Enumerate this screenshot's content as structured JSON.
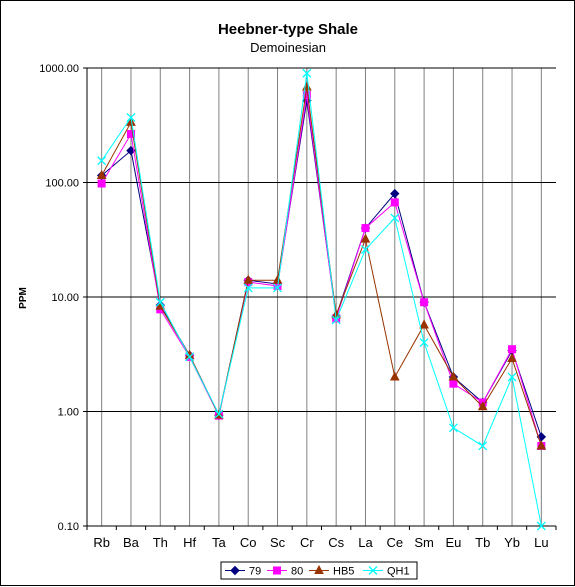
{
  "chart_data": {
    "type": "line",
    "title": "Heebner-type Shale",
    "subtitle": "Demoinesian",
    "xlabel": "",
    "ylabel": "PPM",
    "yscale": "log",
    "ylim": [
      0.1,
      1000
    ],
    "y_ticks": [
      0.1,
      1,
      10,
      100,
      1000
    ],
    "y_tick_labels": [
      "0.10",
      "1.00",
      "10.00",
      "100.00",
      "1000.00"
    ],
    "grid": {
      "horizontal": true,
      "vertical": true
    },
    "legend_position": "bottom",
    "categories": [
      "Rb",
      "Ba",
      "Th",
      "Hf",
      "Ta",
      "Co",
      "Sc",
      "Cr",
      "Cs",
      "La",
      "Ce",
      "Sm",
      "Eu",
      "Tb",
      "Yb",
      "Lu"
    ],
    "series": [
      {
        "name": "79",
        "color": "#000080",
        "marker": "diamond",
        "values": [
          115,
          190,
          8.5,
          3.1,
          0.93,
          14,
          13,
          520,
          6.8,
          40,
          80,
          9,
          2.0,
          1.2,
          3.4,
          0.6
        ]
      },
      {
        "name": "80",
        "color": "#ff00ff",
        "marker": "square",
        "values": [
          98,
          265,
          7.8,
          3.0,
          0.92,
          13.5,
          12.5,
          580,
          6.5,
          40,
          67,
          9,
          1.75,
          1.2,
          3.5,
          0.5
        ]
      },
      {
        "name": "HB5",
        "color": "#993300",
        "marker": "triangle",
        "values": [
          115,
          335,
          8.3,
          3.1,
          0.93,
          14,
          14,
          680,
          7.0,
          32,
          2.0,
          5.7,
          2.0,
          1.1,
          2.9,
          0.5
        ]
      },
      {
        "name": "QH1",
        "color": "#00ffff",
        "marker": "x",
        "values": [
          155,
          370,
          9.0,
          3.0,
          0.95,
          12,
          12,
          900,
          6.3,
          26,
          49,
          4.0,
          0.72,
          0.5,
          2.0,
          0.1
        ]
      }
    ]
  }
}
